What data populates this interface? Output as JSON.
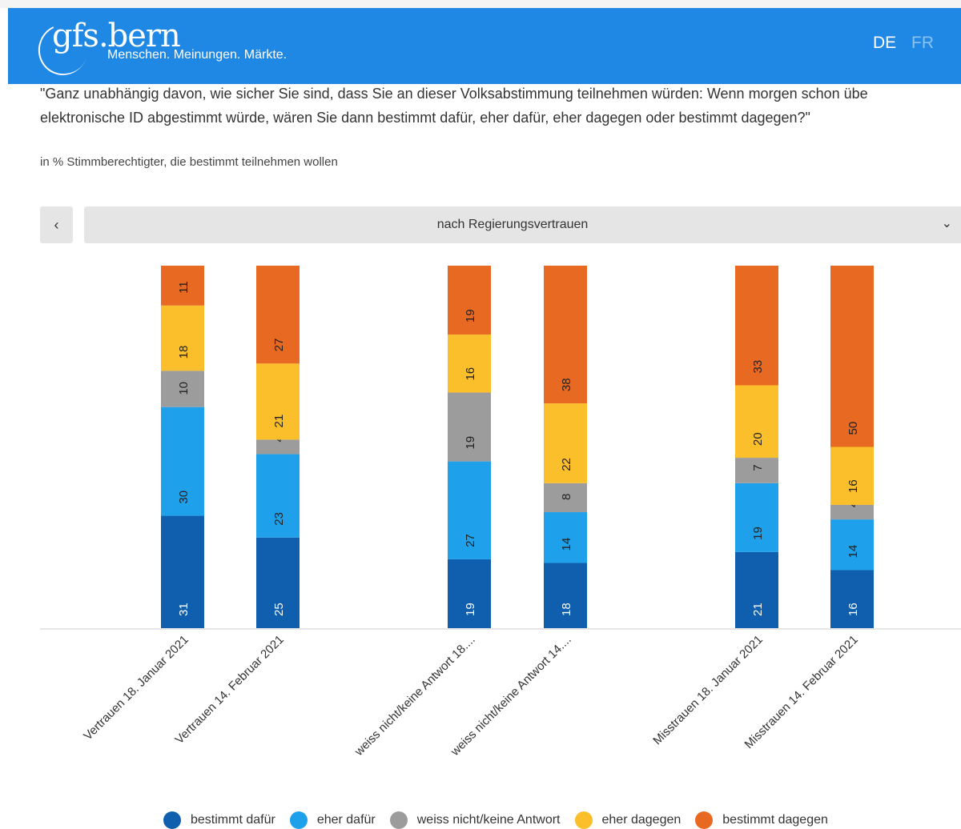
{
  "header": {
    "logo": "gfs.bern",
    "tagline": "Menschen. Meinungen. Märkte.",
    "lang_de": "DE",
    "lang_fr": "FR"
  },
  "question": {
    "line1": "\"Ganz unabhängig davon, wie sicher Sie sind, dass Sie an dieser Volksabstimmung teilnehmen würden: Wenn morgen schon übe",
    "line2": "elektronische ID abgestimmt würde, wären Sie dann bestimmt dafür, eher dafür, eher dagegen oder bestimmt dagegen?\""
  },
  "subtitle": "in % Stimmberechtigter, die bestimmt teilnehmen wollen",
  "controls": {
    "prev": "‹",
    "select": "nach Regierungsvertrauen",
    "chevron": "⌄"
  },
  "chart_data": {
    "type": "bar",
    "stacked": true,
    "orientation": "vertical",
    "ylim": [
      0,
      100
    ],
    "legend": "bottom",
    "categories": [
      "Vertrauen 18. Januar 2021",
      "Vertrauen 14. Februar 2021",
      "weiss nicht/keine Antwort 18....",
      "weiss nicht/keine Antwort 14....",
      "Misstrauen 18. Januar 2021",
      "Misstrauen 14. Februar 2021"
    ],
    "series": [
      {
        "name": "bestimmt dafür",
        "color": "#0f5fae",
        "values": [
          31,
          25,
          19,
          18,
          21,
          16
        ]
      },
      {
        "name": "eher dafür",
        "color": "#1fa0ea",
        "values": [
          30,
          23,
          27,
          14,
          19,
          14
        ]
      },
      {
        "name": "weiss nicht/keine Antwort",
        "color": "#9c9c9c",
        "values": [
          10,
          4,
          19,
          8,
          7,
          4
        ]
      },
      {
        "name": "eher dagegen",
        "color": "#fbbf2b",
        "values": [
          18,
          21,
          16,
          22,
          20,
          16
        ]
      },
      {
        "name": "bestimmt dagegen",
        "color": "#e86a22",
        "values": [
          11,
          27,
          19,
          38,
          33,
          50
        ]
      }
    ]
  }
}
